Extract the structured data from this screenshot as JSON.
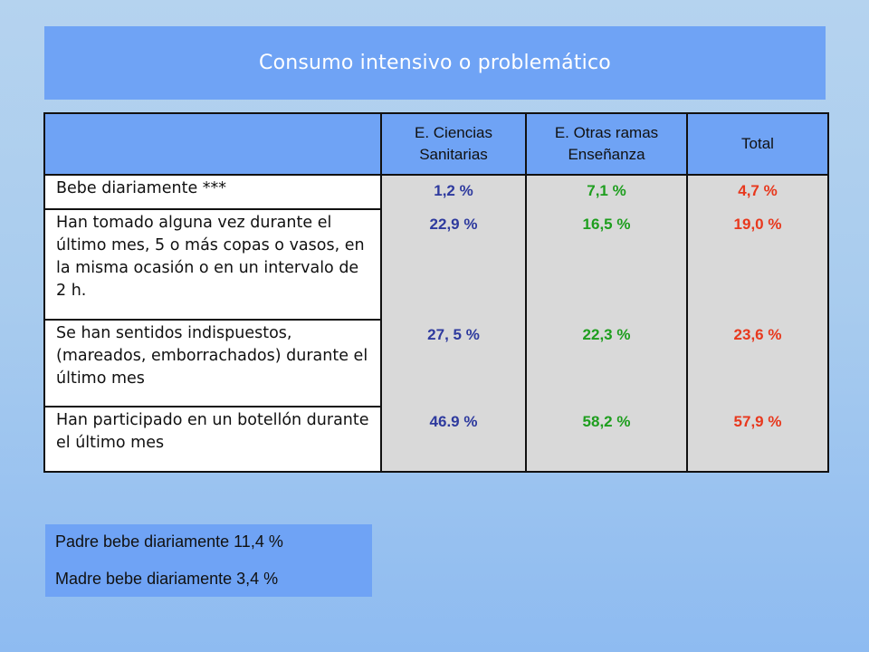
{
  "title": "Consumo intensivo o problemático",
  "table": {
    "headers": [
      "",
      "E. Ciencias Sanitarias",
      "E. Otras ramas Enseñanza",
      "Total"
    ],
    "rows": [
      {
        "label": "Bebe diariamente ***",
        "ciencias_sanitarias": "1,2 %",
        "otras_ramas": "7,1 %",
        "total": "4,7 %"
      },
      {
        "label": "Han tomado alguna vez durante el último mes, 5 o más copas o vasos, en la misma ocasión o en un intervalo de 2 h.",
        "ciencias_sanitarias": "22,9 %",
        "otras_ramas": "16,5 %",
        "total": "19,0 %"
      },
      {
        "label": "Se han sentidos indispuestos, (mareados, emborrachados) durante el último mes",
        "ciencias_sanitarias": "27, 5 %",
        "otras_ramas": "22,3 %",
        "total": "23,6 %"
      },
      {
        "label": "Han participado en un botellón durante el último mes",
        "ciencias_sanitarias": "46.9 %",
        "otras_ramas": "58,2 %",
        "total": "57,9  %"
      }
    ]
  },
  "notes": [
    "Padre bebe diariamente 11,4 %",
    "Madre bebe diariamente 3,4 %"
  ],
  "colors": {
    "banner": "#6fa3f5",
    "ciencias_sanitarias_values": "#2e3a9e",
    "otras_ramas_values": "#1e9e1e",
    "total_values": "#e8381d"
  }
}
